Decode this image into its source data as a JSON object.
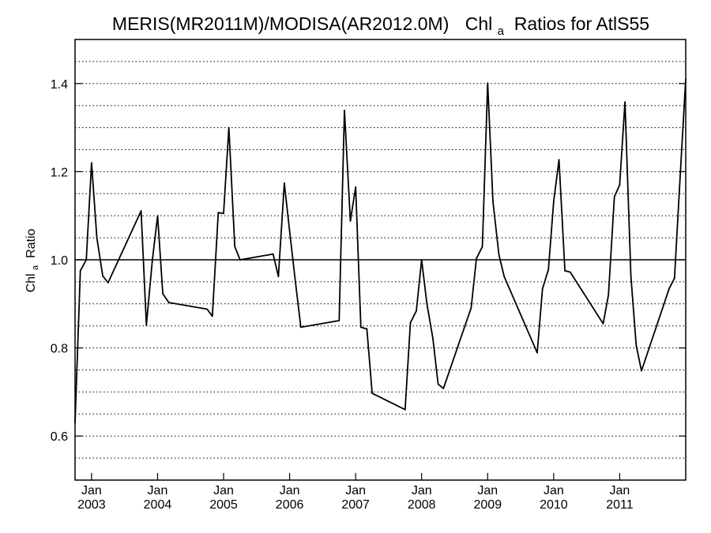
{
  "chart_data": {
    "type": "line",
    "title": {
      "main": "MERIS(MR2011M)/MODISA(AR2012.0M)",
      "chl": "Chl",
      "chl_sub": "a",
      "rest": " Ratios for AtlS55"
    },
    "ylabel": {
      "chl": "Chl",
      "chl_sub": "a",
      "rest": " Ratio"
    },
    "xlim": [
      2002.75,
      2012.0
    ],
    "ylim": [
      0.5,
      1.5
    ],
    "yticks": [
      {
        "value": 0.6,
        "label": "0.6"
      },
      {
        "value": 0.8,
        "label": "0.8"
      },
      {
        "value": 1.0,
        "label": "1.0"
      },
      {
        "value": 1.2,
        "label": "1.2"
      },
      {
        "value": 1.4,
        "label": "1.4"
      }
    ],
    "xticks": [
      {
        "value": 2003.0,
        "month": "Jan",
        "year": "2003"
      },
      {
        "value": 2004.0,
        "month": "Jan",
        "year": "2004"
      },
      {
        "value": 2005.0,
        "month": "Jan",
        "year": "2005"
      },
      {
        "value": 2006.0,
        "month": "Jan",
        "year": "2006"
      },
      {
        "value": 2007.0,
        "month": "Jan",
        "year": "2007"
      },
      {
        "value": 2008.0,
        "month": "Jan",
        "year": "2008"
      },
      {
        "value": 2009.0,
        "month": "Jan",
        "year": "2009"
      },
      {
        "value": 2010.0,
        "month": "Jan",
        "year": "2010"
      },
      {
        "value": 2011.0,
        "month": "Jan",
        "year": "2011"
      }
    ],
    "grid": {
      "y_dotted_step": 0.05
    },
    "reference_line": 1.0,
    "series": [
      {
        "color": "#000000",
        "x": [
          2002.75,
          2002.83,
          2002.92,
          2003.0,
          2003.08,
          2003.17,
          2003.25,
          2003.75,
          2003.83,
          2003.92,
          2004.0,
          2004.08,
          2004.17,
          2004.75,
          2004.83,
          2004.92,
          2005.0,
          2005.08,
          2005.17,
          2005.25,
          2005.75,
          2005.83,
          2005.92,
          2006.0,
          2006.08,
          2006.17,
          2006.75,
          2006.83,
          2006.92,
          2007.0,
          2007.08,
          2007.17,
          2007.25,
          2007.75,
          2007.83,
          2007.92,
          2008.0,
          2008.08,
          2008.17,
          2008.25,
          2008.33,
          2008.75,
          2008.83,
          2008.92,
          2009.0,
          2009.08,
          2009.17,
          2009.25,
          2009.75,
          2009.83,
          2009.92,
          2010.0,
          2010.08,
          2010.17,
          2010.25,
          2010.75,
          2010.83,
          2010.92,
          2011.0,
          2011.08,
          2011.17,
          2011.25,
          2011.33,
          2011.75,
          2011.83,
          2011.92,
          2012.0
        ],
        "values": [
          0.63,
          0.975,
          1.0,
          1.22,
          1.05,
          0.963,
          0.948,
          1.111,
          0.852,
          0.998,
          1.1,
          0.923,
          0.903,
          0.888,
          0.872,
          1.107,
          1.105,
          1.3,
          1.03,
          1.0,
          1.013,
          0.962,
          1.174,
          1.065,
          0.96,
          0.847,
          0.862,
          1.339,
          1.088,
          1.165,
          0.847,
          0.843,
          0.697,
          0.66,
          0.857,
          0.884,
          1.0,
          0.9,
          0.822,
          0.718,
          0.708,
          0.891,
          1.003,
          1.03,
          1.401,
          1.132,
          1.012,
          0.962,
          0.789,
          0.934,
          0.978,
          1.133,
          1.227,
          0.975,
          0.972,
          0.855,
          0.92,
          1.143,
          1.17,
          1.358,
          0.963,
          0.806,
          0.748,
          0.935,
          0.958,
          1.2,
          1.41
        ]
      }
    ]
  }
}
